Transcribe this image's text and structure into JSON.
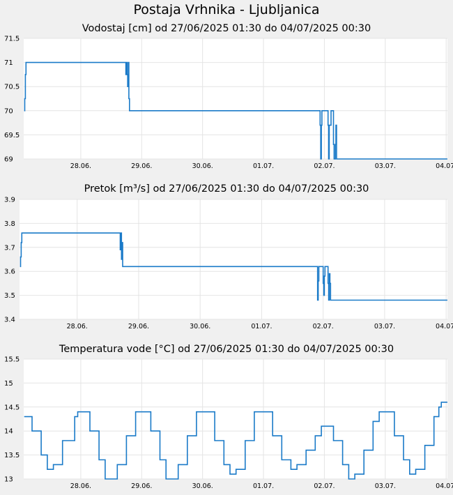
{
  "page_title": "Postaja Vrhnika - Ljubljanica",
  "colors": {
    "line": "#1a7ac8",
    "plot_bg": "#ffffff",
    "page_bg": "#f0f0f0",
    "grid": "#e4e4e4"
  },
  "chart_data": [
    {
      "type": "line",
      "title": "Vodostaj [cm] od 27/06/2025 01:30 do 04/07/2025 00:30",
      "xlabel": "",
      "ylabel": "",
      "x_ticks": [
        "28.06.",
        "29.06.",
        "30.06.",
        "01.07.",
        "02.07.",
        "03.07.",
        "04.07."
      ],
      "y_ticks": [
        "69",
        "69.5",
        "70",
        "70.5",
        "71",
        "71.5"
      ],
      "ylim": [
        69,
        71.5
      ],
      "xlim_days": [
        -0.9375,
        6.0208
      ],
      "grid": true,
      "series": [
        {
          "points": [
            [
              -0.93,
              70
            ],
            [
              -0.92,
              70.25
            ],
            [
              -0.91,
              70.75
            ],
            [
              -0.9,
              71
            ],
            [
              0.73,
              71
            ],
            [
              0.74,
              70.75
            ],
            [
              0.75,
              71
            ],
            [
              0.76,
              70.75
            ],
            [
              0.77,
              70.5
            ],
            [
              0.78,
              71
            ],
            [
              0.79,
              70.25
            ],
            [
              0.8,
              70
            ],
            [
              3.92,
              70
            ],
            [
              3.93,
              69.7
            ],
            [
              3.94,
              69
            ],
            [
              3.95,
              69.7
            ],
            [
              3.96,
              70
            ],
            [
              4.05,
              70
            ],
            [
              4.06,
              69.7
            ],
            [
              4.07,
              69
            ],
            [
              4.08,
              69.7
            ],
            [
              4.11,
              70
            ],
            [
              4.14,
              70
            ],
            [
              4.15,
              69.3
            ],
            [
              4.16,
              69
            ],
            [
              4.18,
              69.3
            ],
            [
              4.19,
              69.7
            ],
            [
              4.2,
              69
            ],
            [
              4.21,
              69
            ],
            [
              6.02,
              69
            ]
          ]
        }
      ]
    },
    {
      "type": "line",
      "title": "Pretok [m³/s] od 27/06/2025 01:30 do 04/07/2025 00:30",
      "xlabel": "",
      "ylabel": "",
      "x_ticks": [
        "28.06.",
        "29.06.",
        "30.06.",
        "01.07.",
        "02.07.",
        "03.07.",
        "04.07."
      ],
      "y_ticks": [
        "3.4",
        "3.5",
        "3.6",
        "3.7",
        "3.8",
        "3.9"
      ],
      "ylim": [
        3.4,
        3.9
      ],
      "xlim_days": [
        -0.9375,
        6.0208
      ],
      "grid": true,
      "series": [
        {
          "points": [
            [
              -0.93,
              3.62
            ],
            [
              -0.92,
              3.66
            ],
            [
              -0.91,
              3.72
            ],
            [
              -0.9,
              3.76
            ],
            [
              0.69,
              3.76
            ],
            [
              0.7,
              3.69
            ],
            [
              0.71,
              3.76
            ],
            [
              0.72,
              3.65
            ],
            [
              0.73,
              3.72
            ],
            [
              0.74,
              3.62
            ],
            [
              0.75,
              3.62
            ],
            [
              3.9,
              3.62
            ],
            [
              3.91,
              3.48
            ],
            [
              3.92,
              3.56
            ],
            [
              3.93,
              3.62
            ],
            [
              3.99,
              3.62
            ],
            [
              4.0,
              3.55
            ],
            [
              4.01,
              3.5
            ],
            [
              4.02,
              3.58
            ],
            [
              4.03,
              3.62
            ],
            [
              4.07,
              3.62
            ],
            [
              4.08,
              3.55
            ],
            [
              4.09,
              3.48
            ],
            [
              4.1,
              3.59
            ],
            [
              4.11,
              3.55
            ],
            [
              4.12,
              3.48
            ],
            [
              4.13,
              3.48
            ],
            [
              6.02,
              3.48
            ]
          ]
        }
      ]
    },
    {
      "type": "line",
      "title": "Temperatura vode [°C] od 27/06/2025 01:30 do 04/07/2025 00:30",
      "xlabel": "",
      "ylabel": "",
      "x_ticks": [
        "28.06.",
        "29.06.",
        "30.06.",
        "01.07.",
        "02.07.",
        "03.07.",
        "04.07."
      ],
      "y_ticks": [
        "13",
        "13.5",
        "14",
        "14.5",
        "15",
        "15.5"
      ],
      "ylim": [
        13,
        15.5
      ],
      "xlim_days": [
        -0.9375,
        6.0208
      ],
      "grid": true,
      "series": [
        {
          "points": [
            [
              -0.93,
              14.3
            ],
            [
              -0.8,
              14.0
            ],
            [
              -0.65,
              13.5
            ],
            [
              -0.55,
              13.2
            ],
            [
              -0.45,
              13.3
            ],
            [
              -0.3,
              13.8
            ],
            [
              -0.1,
              14.3
            ],
            [
              -0.05,
              14.4
            ],
            [
              0.02,
              14.4
            ],
            [
              0.15,
              14.0
            ],
            [
              0.3,
              13.4
            ],
            [
              0.4,
              13.0
            ],
            [
              0.5,
              13.0
            ],
            [
              0.6,
              13.3
            ],
            [
              0.75,
              13.9
            ],
            [
              0.9,
              14.4
            ],
            [
              1.0,
              14.4
            ],
            [
              1.15,
              14.0
            ],
            [
              1.3,
              13.4
            ],
            [
              1.4,
              13.0
            ],
            [
              1.5,
              13.0
            ],
            [
              1.6,
              13.3
            ],
            [
              1.75,
              13.9
            ],
            [
              1.9,
              14.4
            ],
            [
              2.05,
              14.4
            ],
            [
              2.2,
              13.8
            ],
            [
              2.35,
              13.3
            ],
            [
              2.45,
              13.1
            ],
            [
              2.55,
              13.2
            ],
            [
              2.7,
              13.8
            ],
            [
              2.85,
              14.4
            ],
            [
              3.0,
              14.4
            ],
            [
              3.15,
              13.9
            ],
            [
              3.3,
              13.4
            ],
            [
              3.45,
              13.2
            ],
            [
              3.55,
              13.3
            ],
            [
              3.7,
              13.6
            ],
            [
              3.85,
              13.9
            ],
            [
              3.95,
              14.1
            ],
            [
              4.05,
              14.1
            ],
            [
              4.15,
              13.8
            ],
            [
              4.3,
              13.3
            ],
            [
              4.4,
              13.0
            ],
            [
              4.5,
              13.1
            ],
            [
              4.65,
              13.6
            ],
            [
              4.8,
              14.2
            ],
            [
              4.9,
              14.4
            ],
            [
              5.0,
              14.4
            ],
            [
              5.15,
              13.9
            ],
            [
              5.3,
              13.4
            ],
            [
              5.4,
              13.1
            ],
            [
              5.5,
              13.2
            ],
            [
              5.65,
              13.7
            ],
            [
              5.8,
              14.3
            ],
            [
              5.88,
              14.5
            ],
            [
              5.92,
              14.6
            ],
            [
              6.02,
              14.6
            ]
          ]
        }
      ]
    }
  ]
}
